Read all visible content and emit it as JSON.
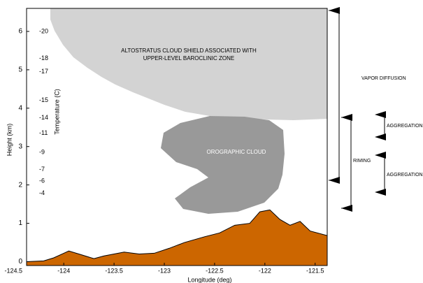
{
  "chart_data": {
    "type": "area",
    "xlabel": "Longitude (deg)",
    "ylabel": "Height (km)",
    "xlim": [
      -124.37,
      -121.38
    ],
    "ylim": [
      -0.1,
      6.6
    ],
    "xticks": [
      -124.5,
      -124,
      -123.5,
      -123,
      -122.5,
      -122,
      -121.5
    ],
    "yticks": [
      0,
      1,
      2,
      3,
      4,
      5,
      6
    ],
    "series": [
      {
        "color": "#cc6600",
        "x": [
          -124.37,
          -124.2,
          -124.1,
          -124.0,
          -123.95,
          -123.85,
          -123.7,
          -123.6,
          -123.4,
          -123.25,
          -123.1,
          -122.95,
          -122.8,
          -122.6,
          -122.45,
          -122.3,
          -122.15,
          -122.05,
          -121.95,
          -121.85,
          -121.75,
          -121.65,
          -121.55,
          -121.38
        ],
        "y": [
          0.0,
          0.02,
          0.1,
          0.22,
          0.28,
          0.2,
          0.08,
          0.15,
          0.25,
          0.2,
          0.22,
          0.35,
          0.5,
          0.65,
          0.75,
          0.95,
          1.0,
          1.3,
          1.35,
          1.1,
          0.95,
          1.05,
          0.8,
          0.68
        ]
      }
    ],
    "temperature": {
      "label": "Temperature (C)",
      "values": [
        -20,
        -18,
        -17,
        -15,
        -14,
        -11,
        -9,
        -7,
        -6,
        -4
      ],
      "heights": [
        6.0,
        5.3,
        4.95,
        4.2,
        3.75,
        3.35,
        2.85,
        2.4,
        2.1,
        1.78
      ]
    },
    "annotations": {
      "altostratus": [
        "ALTOSTRATUS CLOUD SHIELD ASSOCIATED WITH",
        "UPPER-LEVEL BAROCLINIC ZONE"
      ],
      "orographic": "OROGRAPHIC CLOUD",
      "vapor": "VAPOR DIFFUSION",
      "riming": "RIMING",
      "aggregation_upper": "AGGREGATION",
      "aggregation_lower": "AGGREGATION"
    }
  }
}
